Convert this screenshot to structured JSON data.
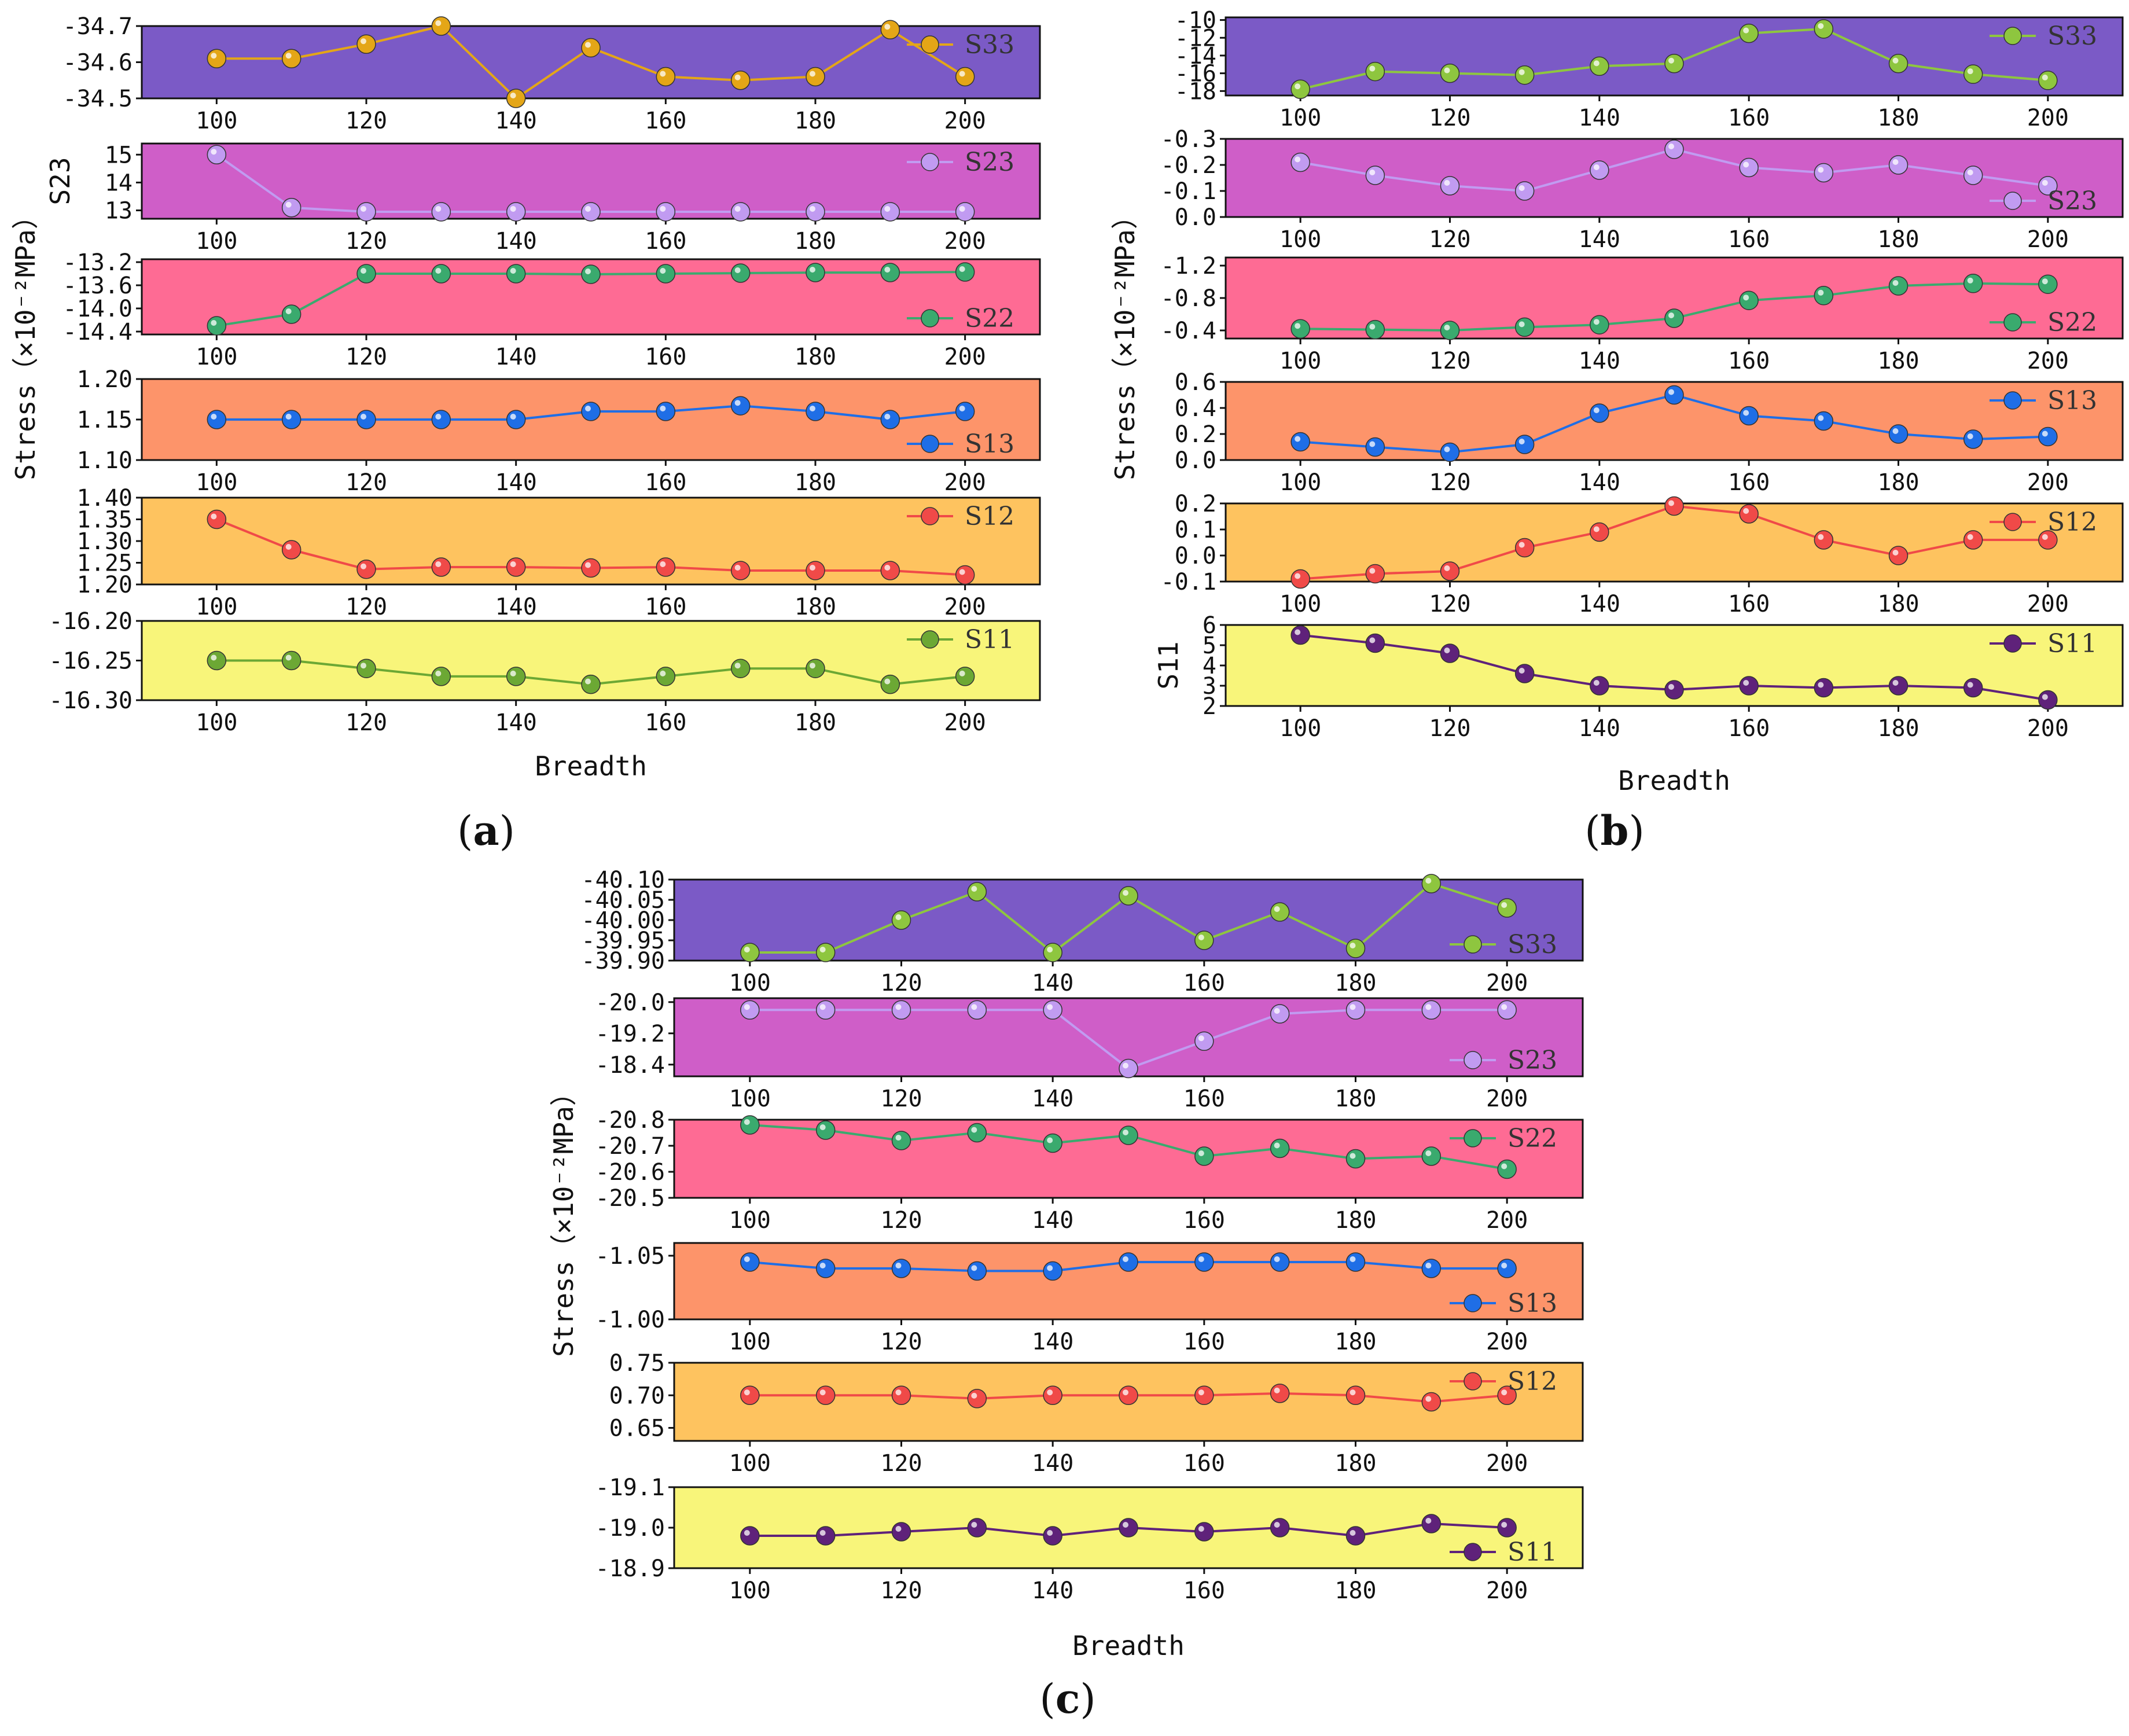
{
  "colors": {
    "bg": {
      "S33": "#7b5ac6",
      "S23": "#cf5ec8",
      "S22": "#fe6b94",
      "S13": "#fd946a",
      "S12": "#fec35f",
      "S11": "#f8f57a"
    },
    "series": {
      "gold": "#e4a617",
      "lavender": "#c19bf1",
      "green": "#3aaa6e",
      "blue": "#1f6ee6",
      "red": "#f04a48",
      "olive": "#6ca834",
      "lime": "#8ec63f",
      "purple": "#5f227a"
    }
  },
  "chart_data": [
    {
      "id": "a",
      "type": "line",
      "caption": "a",
      "xlabel": "Breadth",
      "ylabel": "Stress（×10⁻²MPa）",
      "x": [
        100,
        110,
        120,
        130,
        140,
        150,
        160,
        170,
        180,
        190,
        200
      ],
      "xlim": [
        90,
        210
      ],
      "xticks": [
        "100",
        "120",
        "140",
        "160",
        "180",
        "200"
      ],
      "subplots": [
        {
          "name": "S33",
          "bg": "S33",
          "color": "gold",
          "ylim": [
            -34.5,
            -34.7
          ],
          "yticks": [
            "-34.7",
            "-34.6",
            "-34.5"
          ],
          "ytick_values": [
            -34.7,
            -34.6,
            -34.5
          ],
          "legend_pos": "top-right",
          "values": [
            -34.61,
            -34.61,
            -34.65,
            -34.7,
            -34.5,
            -34.64,
            -34.56,
            -34.55,
            -34.56,
            -34.69,
            -34.56
          ]
        },
        {
          "name": "S23",
          "bg": "S23",
          "color": "lavender",
          "ylabel": "S23",
          "ylim": [
            12.7,
            15.4
          ],
          "yticks": [
            "15",
            "14",
            "13"
          ],
          "ytick_values": [
            15,
            14,
            13
          ],
          "legend_pos": "top-right",
          "values": [
            15.0,
            13.1,
            12.95,
            12.95,
            12.95,
            12.95,
            12.95,
            12.95,
            12.95,
            12.95,
            12.95
          ]
        },
        {
          "name": "S22",
          "bg": "S22",
          "color": "green",
          "ylim": [
            -14.45,
            -13.15
          ],
          "yticks": [
            "-13.2",
            "-13.6",
            "-14.0",
            "-14.4"
          ],
          "ytick_values": [
            -13.2,
            -13.6,
            -14.0,
            -14.4
          ],
          "legend_pos": "bottom-right",
          "values": [
            -14.3,
            -14.1,
            -13.4,
            -13.4,
            -13.4,
            -13.41,
            -13.4,
            -13.39,
            -13.38,
            -13.38,
            -13.37
          ]
        },
        {
          "name": "S13",
          "bg": "S13",
          "color": "blue",
          "ylim": [
            1.1,
            1.2
          ],
          "yticks": [
            "1.20",
            "1.15",
            "1.10"
          ],
          "ytick_values": [
            1.2,
            1.15,
            1.1
          ],
          "legend_pos": "bottom-right",
          "values": [
            1.15,
            1.15,
            1.15,
            1.15,
            1.15,
            1.16,
            1.16,
            1.167,
            1.16,
            1.15,
            1.16
          ]
        },
        {
          "name": "S12",
          "bg": "S12",
          "color": "red",
          "ylim": [
            1.2,
            1.4
          ],
          "yticks": [
            "1.40",
            "1.35",
            "1.30",
            "1.25",
            "1.20"
          ],
          "ytick_values": [
            1.4,
            1.35,
            1.3,
            1.25,
            1.2
          ],
          "legend_pos": "top-right",
          "values": [
            1.35,
            1.28,
            1.235,
            1.24,
            1.24,
            1.238,
            1.24,
            1.232,
            1.232,
            1.232,
            1.222
          ]
        },
        {
          "name": "S11",
          "bg": "S11",
          "color": "olive",
          "ylim": [
            -16.3,
            -16.2
          ],
          "yticks": [
            "-16.20",
            "-16.25",
            "-16.30"
          ],
          "ytick_values": [
            -16.2,
            -16.25,
            -16.3
          ],
          "legend_pos": "top-right",
          "values": [
            -16.25,
            -16.25,
            -16.26,
            -16.27,
            -16.27,
            -16.28,
            -16.27,
            -16.26,
            -16.26,
            -16.28,
            -16.27
          ]
        }
      ]
    },
    {
      "id": "b",
      "type": "line",
      "caption": "b",
      "xlabel": "Breadth",
      "ylabel": "Stress（×10⁻²MPa）",
      "x": [
        100,
        110,
        120,
        130,
        140,
        150,
        160,
        170,
        180,
        190,
        200
      ],
      "xlim": [
        90,
        210
      ],
      "xticks": [
        "100",
        "120",
        "140",
        "160",
        "180",
        "200"
      ],
      "subplots": [
        {
          "name": "S33",
          "bg": "S33",
          "color": "lime",
          "ylim": [
            -18.5,
            -9.7
          ],
          "yticks": [
            "-10",
            "-12",
            "-14",
            "-16",
            "-18"
          ],
          "ytick_values": [
            -10,
            -12,
            -14,
            -16,
            -18
          ],
          "legend_pos": "top-right",
          "values": [
            -17.8,
            -15.8,
            -16.0,
            -16.2,
            -15.2,
            -14.9,
            -11.5,
            -11.0,
            -14.9,
            -16.1,
            -16.8
          ]
        },
        {
          "name": "S23",
          "bg": "S23",
          "color": "lavender",
          "ylim": [
            0.0,
            -0.3
          ],
          "yticks": [
            "0.0",
            "-0.1",
            "-0.2",
            "-0.3"
          ],
          "ytick_values": [
            0.0,
            -0.1,
            -0.2,
            -0.3
          ],
          "legend_pos": "bottom-right",
          "values": [
            -0.21,
            -0.16,
            -0.12,
            -0.1,
            -0.18,
            -0.26,
            -0.19,
            -0.17,
            -0.2,
            -0.16,
            -0.12
          ]
        },
        {
          "name": "S22",
          "bg": "S22",
          "color": "green",
          "ylim": [
            -0.3,
            -1.3
          ],
          "yticks": [
            "-1.2",
            "-0.8",
            "-0.4"
          ],
          "ytick_values": [
            -1.2,
            -0.8,
            -0.4
          ],
          "legend_pos": "bottom-right",
          "values": [
            -0.42,
            -0.41,
            -0.4,
            -0.44,
            -0.47,
            -0.55,
            -0.77,
            -0.83,
            -0.95,
            -0.98,
            -0.97
          ]
        },
        {
          "name": "S13",
          "bg": "S13",
          "color": "blue",
          "ylim": [
            0.0,
            0.6
          ],
          "yticks": [
            "0.6",
            "0.4",
            "0.2",
            "0.0"
          ],
          "ytick_values": [
            0.6,
            0.4,
            0.2,
            0.0
          ],
          "legend_pos": "top-right",
          "values": [
            0.14,
            0.1,
            0.06,
            0.12,
            0.36,
            0.5,
            0.34,
            0.3,
            0.2,
            0.16,
            0.18
          ]
        },
        {
          "name": "S12",
          "bg": "S12",
          "color": "red",
          "ylim": [
            -0.1,
            0.2
          ],
          "yticks": [
            "0.2",
            "0.1",
            "0.0",
            "-0.1"
          ],
          "ytick_values": [
            0.2,
            0.1,
            0.0,
            -0.1
          ],
          "legend_pos": "top-right",
          "values": [
            -0.09,
            -0.07,
            -0.06,
            0.03,
            0.09,
            0.19,
            0.16,
            0.06,
            -0.0,
            0.06,
            0.06
          ]
        },
        {
          "name": "S11",
          "bg": "S11",
          "color": "purple",
          "ylabel": "S11",
          "ylim": [
            2,
            6
          ],
          "yticks": [
            "6",
            "5",
            "4",
            "3",
            "2"
          ],
          "ytick_values": [
            6,
            5,
            4,
            3,
            2
          ],
          "legend_pos": "top-right",
          "values": [
            5.5,
            5.1,
            4.6,
            3.6,
            3.0,
            2.8,
            3.0,
            2.9,
            3.0,
            2.9,
            2.3
          ]
        }
      ]
    },
    {
      "id": "c",
      "type": "line",
      "caption": "c",
      "xlabel": "Breadth",
      "ylabel": "Stress（×10⁻²MPa）",
      "x": [
        100,
        110,
        120,
        130,
        140,
        150,
        160,
        170,
        180,
        190,
        200
      ],
      "xlim": [
        90,
        210
      ],
      "xticks": [
        "100",
        "120",
        "140",
        "160",
        "180",
        "200"
      ],
      "subplots": [
        {
          "name": "S33",
          "bg": "S33",
          "color": "lime",
          "ylim": [
            -39.9,
            -40.1
          ],
          "yticks": [
            "-40.10",
            "-40.05",
            "-40.00",
            "-39.95",
            "-39.90"
          ],
          "ytick_values": [
            -40.1,
            -40.05,
            -40.0,
            -39.95,
            -39.9
          ],
          "legend_pos": "bottom-right",
          "values": [
            -39.92,
            -39.92,
            -40.0,
            -40.07,
            -39.92,
            -40.06,
            -39.95,
            -40.02,
            -39.93,
            -40.09,
            -40.03
          ]
        },
        {
          "name": "S23",
          "bg": "S23",
          "color": "lavender",
          "ylim": [
            -18.1,
            -20.1
          ],
          "yticks": [
            "-20.0",
            "-19.2",
            "-18.4"
          ],
          "ytick_values": [
            -20.0,
            -19.2,
            -18.4
          ],
          "legend_pos": "bottom-right",
          "values": [
            -19.8,
            -19.8,
            -19.8,
            -19.8,
            -19.8,
            -18.3,
            -19.0,
            -19.7,
            -19.8,
            -19.8,
            -19.8
          ]
        },
        {
          "name": "S22",
          "bg": "S22",
          "color": "green",
          "ylim": [
            -20.5,
            -20.8
          ],
          "yticks": [
            "-20.8",
            "-20.7",
            "-20.6",
            "-20.5"
          ],
          "ytick_values": [
            -20.8,
            -20.7,
            -20.6,
            -20.5
          ],
          "legend_pos": "top-right",
          "values": [
            -20.78,
            -20.76,
            -20.72,
            -20.75,
            -20.71,
            -20.74,
            -20.66,
            -20.69,
            -20.65,
            -20.66,
            -20.61
          ]
        },
        {
          "name": "S13",
          "bg": "S13",
          "color": "blue",
          "ylim": [
            -1.0,
            -1.06
          ],
          "yticks": [
            "-1.05",
            "-1.00"
          ],
          "ytick_values": [
            -1.05,
            -1.0
          ],
          "legend_pos": "bottom-right",
          "values": [
            -1.045,
            -1.04,
            -1.04,
            -1.038,
            -1.038,
            -1.045,
            -1.045,
            -1.045,
            -1.045,
            -1.04,
            -1.04
          ]
        },
        {
          "name": "S12",
          "bg": "S12",
          "color": "red",
          "ylim": [
            0.63,
            0.75
          ],
          "yticks": [
            "0.75",
            "0.70",
            "0.65"
          ],
          "ytick_values": [
            0.75,
            0.7,
            0.65
          ],
          "legend_pos": "top-right",
          "values": [
            0.7,
            0.7,
            0.7,
            0.695,
            0.7,
            0.7,
            0.7,
            0.703,
            0.7,
            0.69,
            0.7
          ]
        },
        {
          "name": "S11",
          "bg": "S11",
          "color": "purple",
          "ylim": [
            -18.9,
            -19.1
          ],
          "yticks": [
            "-19.1",
            "-19.0",
            "-18.9"
          ],
          "ytick_values": [
            -19.1,
            -19.0,
            -18.9
          ],
          "legend_pos": "bottom-right",
          "values": [
            -18.98,
            -18.98,
            -18.99,
            -19.0,
            -18.98,
            -19.0,
            -18.99,
            -19.0,
            -18.98,
            -19.01,
            -19.0
          ]
        }
      ]
    }
  ]
}
